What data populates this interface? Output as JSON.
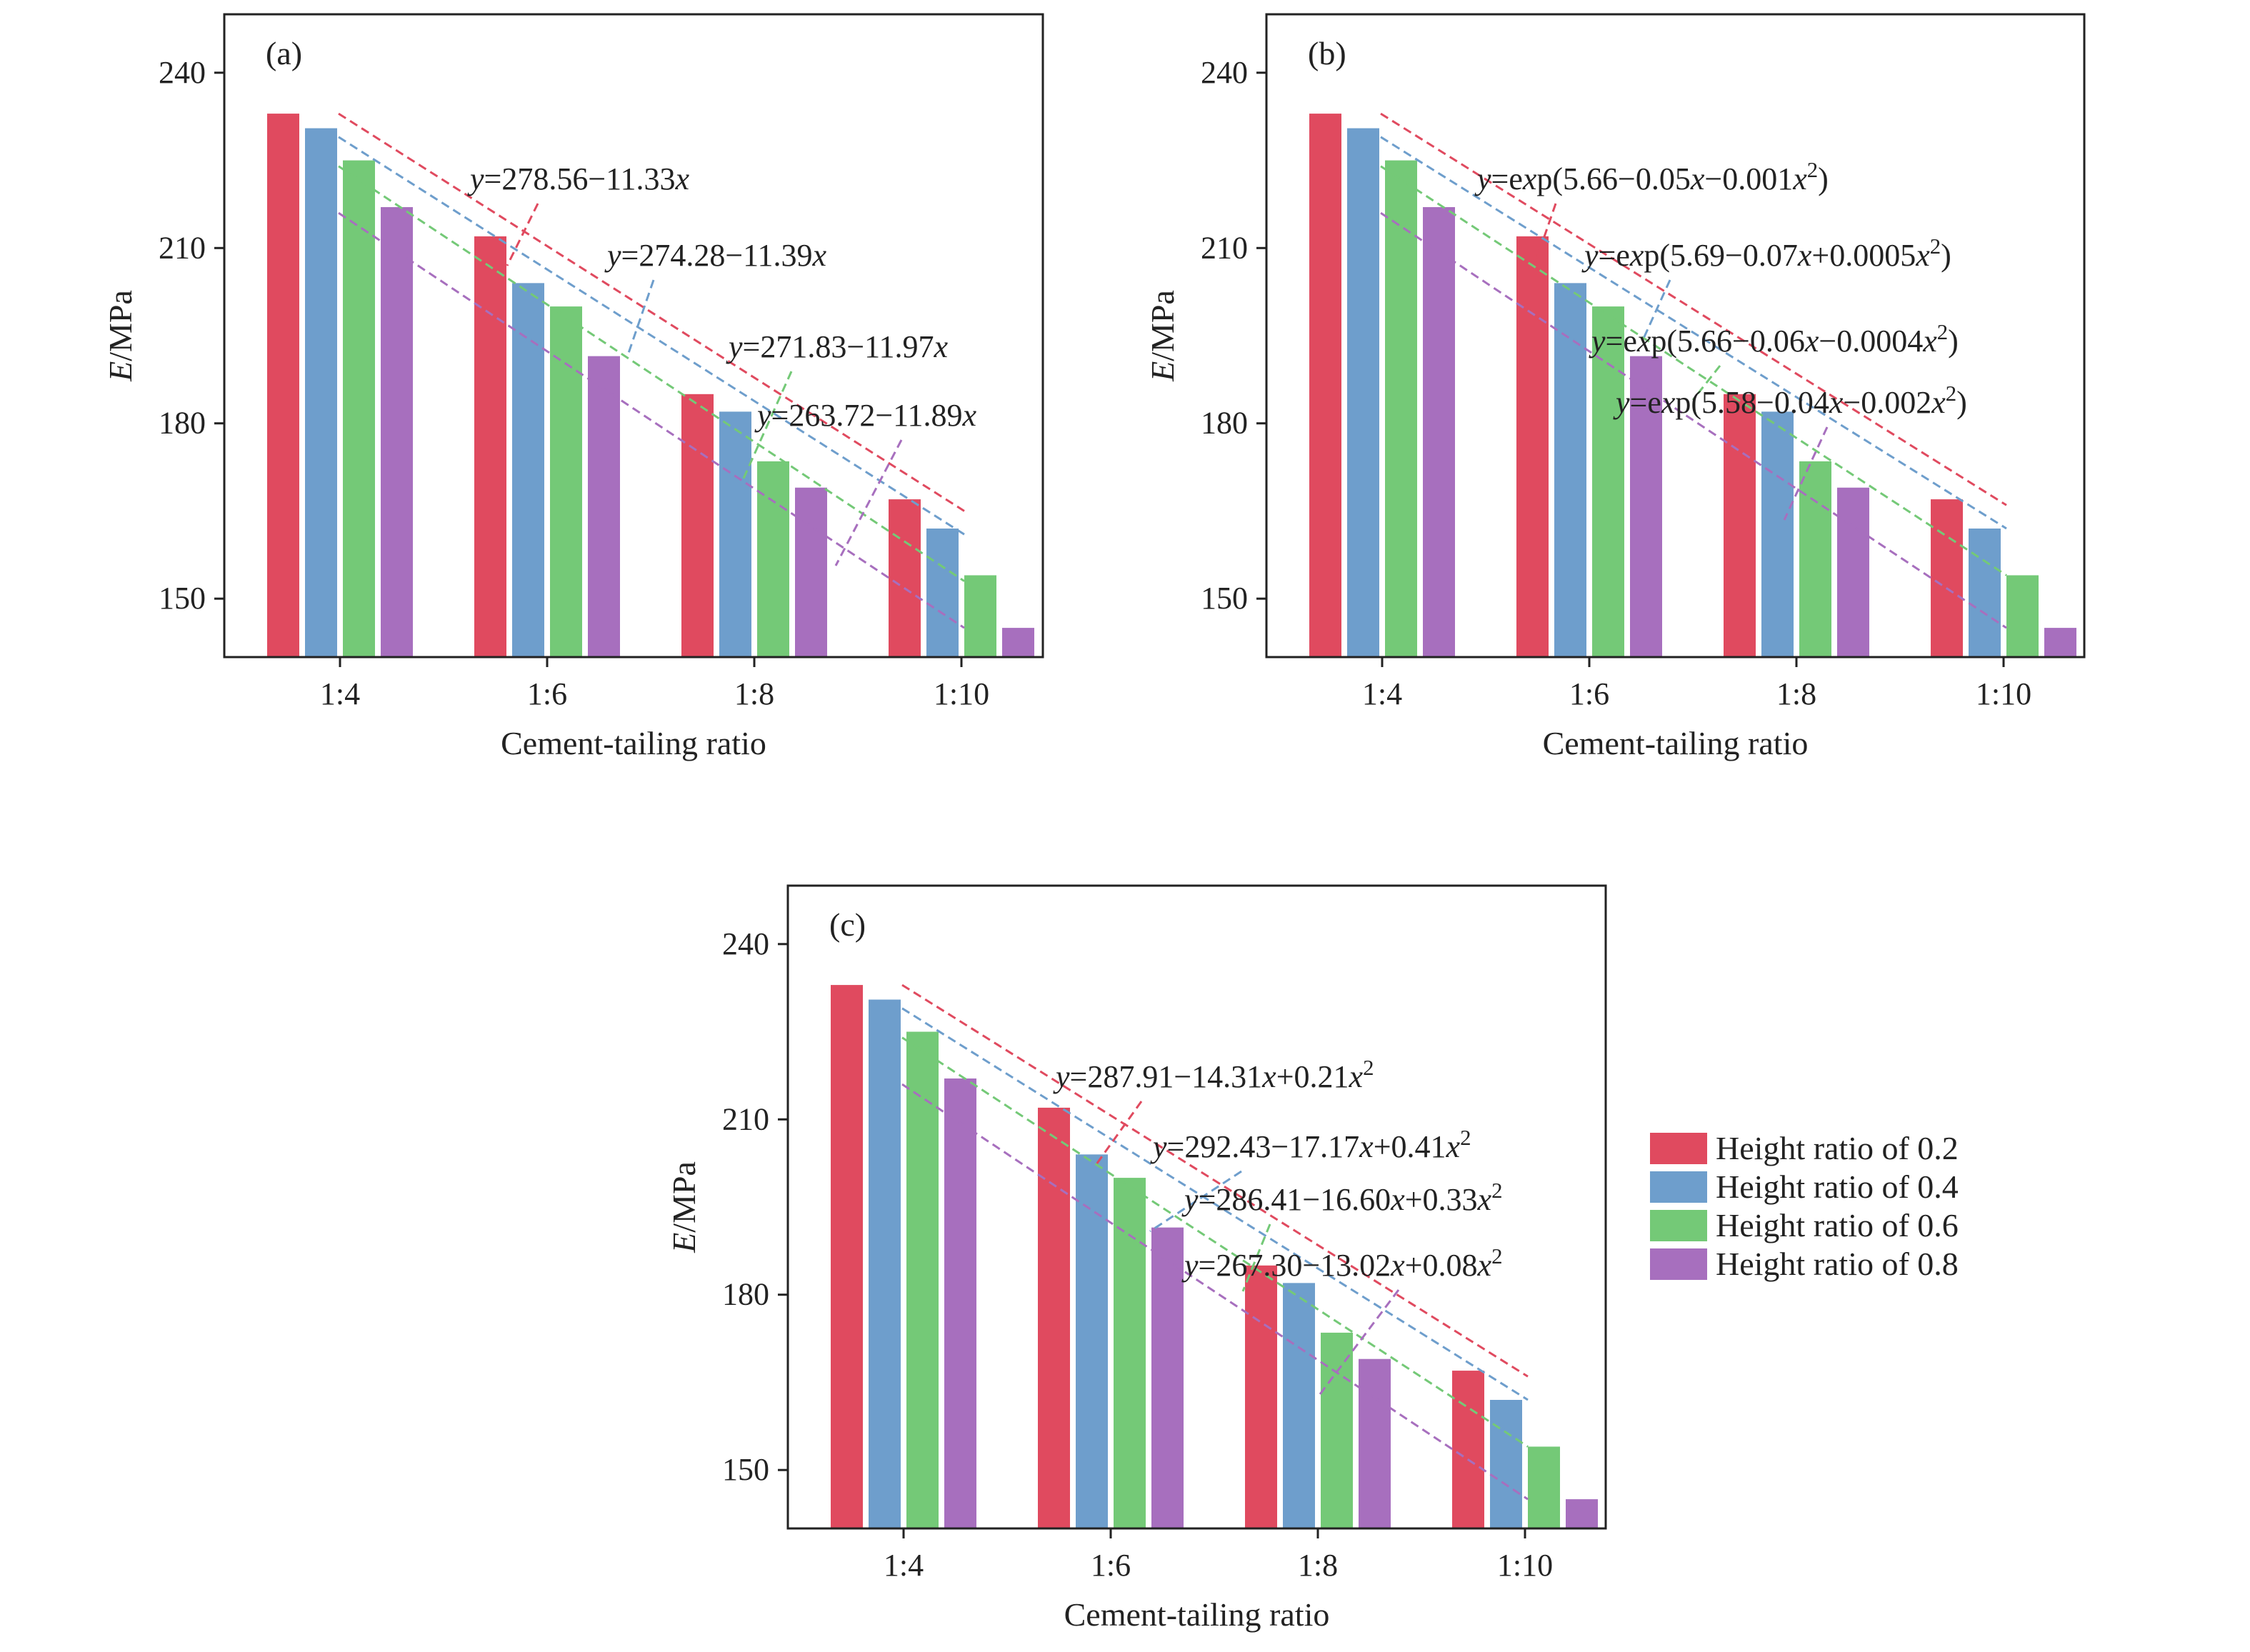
{
  "colors": [
    "#E04A5F",
    "#6E9ECC",
    "#74C977",
    "#A76FBE"
  ],
  "chart_data": [
    {
      "type": "bar",
      "panel_label": "(a)",
      "xlabel": "Cement-tailing ratio",
      "ylabel": "E/MPa",
      "ylim": [
        140,
        250
      ],
      "yticks": [
        150,
        180,
        210,
        240
      ],
      "categories": [
        "1:4",
        "1:6",
        "1:8",
        "1:10"
      ],
      "series": [
        {
          "name": "Height ratio of 0.2",
          "values": [
            233,
            212,
            185,
            167
          ]
        },
        {
          "name": "Height ratio of 0.4",
          "values": [
            230.5,
            204,
            182,
            162
          ]
        },
        {
          "name": "Height ratio of 0.6",
          "values": [
            225,
            200,
            173.5,
            154
          ]
        },
        {
          "name": "Height ratio of 0.8",
          "values": [
            217,
            191.5,
            169,
            145
          ]
        }
      ],
      "fits": [
        {
          "label": "y=278.56−11.33x",
          "y_start": 233,
          "y_end": 165
        },
        {
          "label": "y=274.28−11.39x",
          "y_start": 229,
          "y_end": 161
        },
        {
          "label": "y=271.83−11.97x",
          "y_start": 224,
          "y_end": 153
        },
        {
          "label": "y=263.72−11.89x",
          "y_start": 216,
          "y_end": 145
        }
      ]
    },
    {
      "type": "bar",
      "panel_label": "(b)",
      "xlabel": "Cement-tailing ratio",
      "ylabel": "E/MPa",
      "ylim": [
        140,
        250
      ],
      "yticks": [
        150,
        180,
        210,
        240
      ],
      "categories": [
        "1:4",
        "1:6",
        "1:8",
        "1:10"
      ],
      "series": [
        {
          "name": "Height ratio of 0.2",
          "values": [
            233,
            212,
            185,
            167
          ]
        },
        {
          "name": "Height ratio of 0.4",
          "values": [
            230.5,
            204,
            182,
            162
          ]
        },
        {
          "name": "Height ratio of 0.6",
          "values": [
            225,
            200,
            173.5,
            154
          ]
        },
        {
          "name": "Height ratio of 0.8",
          "values": [
            217,
            191.5,
            169,
            145
          ]
        }
      ],
      "fits": [
        {
          "label": "y=exp(5.66−0.05x−0.001x²)",
          "y_start": 233,
          "y_end": 166
        },
        {
          "label": "y=exp(5.69−0.07x+0.0005x²)",
          "y_start": 229,
          "y_end": 162
        },
        {
          "label": "y=exp(5.66−0.06x−0.0004x²)",
          "y_start": 224,
          "y_end": 154
        },
        {
          "label": "y=exp(5.58−0.04x−0.002x²)",
          "y_start": 216,
          "y_end": 145
        }
      ]
    },
    {
      "type": "bar",
      "panel_label": "(c)",
      "xlabel": "Cement-tailing ratio",
      "ylabel": "E/MPa",
      "ylim": [
        140,
        250
      ],
      "yticks": [
        150,
        180,
        210,
        240
      ],
      "categories": [
        "1:4",
        "1:6",
        "1:8",
        "1:10"
      ],
      "series": [
        {
          "name": "Height ratio of 0.2",
          "values": [
            233,
            212,
            185,
            167
          ]
        },
        {
          "name": "Height ratio of 0.4",
          "values": [
            230.5,
            204,
            182,
            162
          ]
        },
        {
          "name": "Height ratio of 0.6",
          "values": [
            225,
            200,
            173.5,
            154
          ]
        },
        {
          "name": "Height ratio of 0.8",
          "values": [
            217,
            191.5,
            169,
            145
          ]
        }
      ],
      "fits": [
        {
          "label": "y=287.91−14.31x+0.21x²",
          "y_start": 233,
          "y_end": 166
        },
        {
          "label": "y=292.43−17.17x+0.41x²",
          "y_start": 229,
          "y_end": 162
        },
        {
          "label": "y=286.41−16.60x+0.33x²",
          "y_start": 224,
          "y_end": 154
        },
        {
          "label": "y=267.30−13.02x+0.08x²",
          "y_start": 216,
          "y_end": 145
        }
      ]
    }
  ],
  "legend": {
    "placement": "right of panel (c)",
    "items": [
      "Height ratio of 0.2",
      "Height ratio of 0.4",
      "Height ratio of 0.6",
      "Height ratio of 0.8"
    ]
  }
}
